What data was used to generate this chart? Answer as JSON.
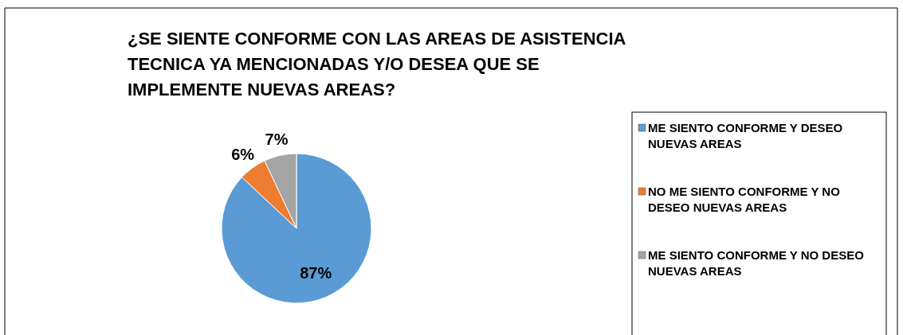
{
  "chart_data": {
    "type": "pie",
    "title": "¿SE SIENTE CONFORME CON LAS AREAS DE ASISTENCIA TECNICA YA MENCIONADAS Y/O DESEA QUE SE IMPLEMENTE NUEVAS AREAS?",
    "categories": [
      "ME SIENTO CONFORME Y DESEO NUEVAS AREAS",
      "NO ME SIENTO CONFORME Y NO DESEO NUEVAS AREAS",
      "ME SIENTO CONFORME Y NO DESEO NUEVAS AREAS"
    ],
    "values": [
      87,
      6,
      7
    ],
    "colors": [
      "#5b9bd5",
      "#ed7d31",
      "#a5a5a5"
    ],
    "value_labels": [
      "87%",
      "6%",
      "7%"
    ],
    "legend": "right"
  }
}
